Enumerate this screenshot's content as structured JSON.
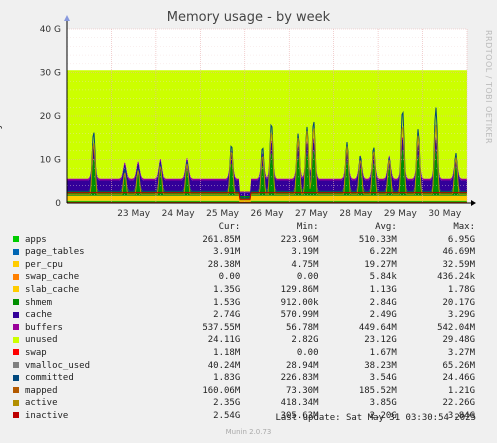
{
  "title": "Memory usage - by week",
  "ylabel": "Bytes",
  "side_text": "RRDTOOL / TOBI OETIKER",
  "footer": {
    "last_update": "Last update: Sat May 31 03:30:54 2025",
    "version": "Munin 2.0.73"
  },
  "legend_headers": [
    "Cur:",
    "Min:",
    "Avg:",
    "Max:"
  ],
  "legend": [
    {
      "name": "apps",
      "color": "#00cc00",
      "cur": "261.85M",
      "min": "223.96M",
      "avg": "510.33M",
      "max": "6.95G"
    },
    {
      "name": "page_tables",
      "color": "#0066b3",
      "cur": "3.91M",
      "min": "3.19M",
      "avg": "6.22M",
      "max": "46.69M"
    },
    {
      "name": "per_cpu",
      "color": "#ffcc00",
      "cur": "28.38M",
      "min": "4.75M",
      "avg": "19.27M",
      "max": "32.59M"
    },
    {
      "name": "swap_cache",
      "color": "#ff8000",
      "cur": "0.00",
      "min": "0.00",
      "avg": "5.84k",
      "max": "436.24k"
    },
    {
      "name": "slab_cache",
      "color": "#ffcc00",
      "cur": "1.35G",
      "min": "129.86M",
      "avg": "1.13G",
      "max": "1.78G"
    },
    {
      "name": "shmem",
      "color": "#008f00",
      "cur": "1.53G",
      "min": "912.00k",
      "avg": "2.84G",
      "max": "20.17G"
    },
    {
      "name": "cache",
      "color": "#330099",
      "cur": "2.74G",
      "min": "570.99M",
      "avg": "2.49G",
      "max": "3.29G"
    },
    {
      "name": "buffers",
      "color": "#990099",
      "cur": "537.55M",
      "min": "56.78M",
      "avg": "449.64M",
      "max": "542.04M"
    },
    {
      "name": "unused",
      "color": "#ccff00",
      "cur": "24.11G",
      "min": "2.82G",
      "avg": "23.12G",
      "max": "29.48G"
    },
    {
      "name": "swap",
      "color": "#ff0000",
      "cur": "1.18M",
      "min": "0.00",
      "avg": "1.67M",
      "max": "3.27M"
    },
    {
      "name": "vmalloc_used",
      "color": "#808080",
      "cur": "40.24M",
      "min": "28.94M",
      "avg": "38.23M",
      "max": "65.26M"
    },
    {
      "name": "committed",
      "color": "#00487d",
      "cur": "1.83G",
      "min": "226.83M",
      "avg": "3.54G",
      "max": "24.46G"
    },
    {
      "name": "mapped",
      "color": "#b35a00",
      "cur": "160.06M",
      "min": "73.30M",
      "avg": "185.52M",
      "max": "1.21G"
    },
    {
      "name": "active",
      "color": "#b38f00",
      "cur": "2.35G",
      "min": "418.34M",
      "avg": "3.85G",
      "max": "22.26G"
    },
    {
      "name": "inactive",
      "color": "#bd0000",
      "cur": "2.54G",
      "min": "305.63M",
      "avg": "2.20G",
      "max": "3.84G"
    }
  ],
  "chart_data": {
    "type": "area",
    "title": "Memory usage - by week",
    "ylabel": "Bytes",
    "ylim": [
      0,
      40
    ],
    "y_unit": "G",
    "y_ticks": [
      "0",
      "10 G",
      "20 G",
      "30 G",
      "40 G"
    ],
    "x_ticks": [
      "23 May",
      "24 May",
      "25 May",
      "26 May",
      "27 May",
      "28 May",
      "29 May",
      "30 May"
    ],
    "grid": true,
    "baseline_totals_G": {
      "apps": 0.5,
      "page_tables": 0.0,
      "per_cpu": 0.02,
      "slab_cache": 1.13,
      "shmem": 2.84,
      "cache": 2.49,
      "buffers": 0.45,
      "unused": 23.12
    },
    "total_G": 30.5,
    "spikes": [
      {
        "day": 22.6,
        "committed_G": 16.5,
        "active_G": 14.0
      },
      {
        "day": 23.3,
        "committed_G": 8.0,
        "active_G": 7.0
      },
      {
        "day": 23.6,
        "committed_G": 8.0,
        "active_G": 7.5
      },
      {
        "day": 24.1,
        "committed_G": 9.0,
        "active_G": 8.5
      },
      {
        "day": 24.7,
        "committed_G": 9.5,
        "active_G": 9.0
      },
      {
        "day": 25.7,
        "committed_G": 13.5,
        "active_G": 12.0
      },
      {
        "day": 26.4,
        "committed_G": 13.0,
        "active_G": 11.0
      },
      {
        "day": 26.6,
        "committed_G": 18.5,
        "active_G": 16.5
      },
      {
        "day": 27.2,
        "committed_G": 16.0,
        "active_G": 15.0
      },
      {
        "day": 27.4,
        "committed_G": 17.5,
        "active_G": 16.5
      },
      {
        "day": 27.55,
        "committed_G": 19.0,
        "active_G": 17.5
      },
      {
        "day": 28.3,
        "committed_G": 14.0,
        "active_G": 13.0
      },
      {
        "day": 28.6,
        "committed_G": 11.0,
        "active_G": 10.0
      },
      {
        "day": 28.9,
        "committed_G": 13.0,
        "active_G": 12.0
      },
      {
        "day": 29.25,
        "committed_G": 10.5,
        "active_G": 10.0
      },
      {
        "day": 29.55,
        "committed_G": 21.5,
        "active_G": 18.0
      },
      {
        "day": 29.9,
        "committed_G": 17.0,
        "active_G": 15.5
      },
      {
        "day": 30.3,
        "committed_G": 22.0,
        "active_G": 18.0
      },
      {
        "day": 30.75,
        "committed_G": 11.5,
        "active_G": 10.5
      }
    ],
    "x_range_days": [
      22.0,
      31.0
    ],
    "dip": {
      "day": 26.0,
      "committed_G": 2.0
    }
  }
}
